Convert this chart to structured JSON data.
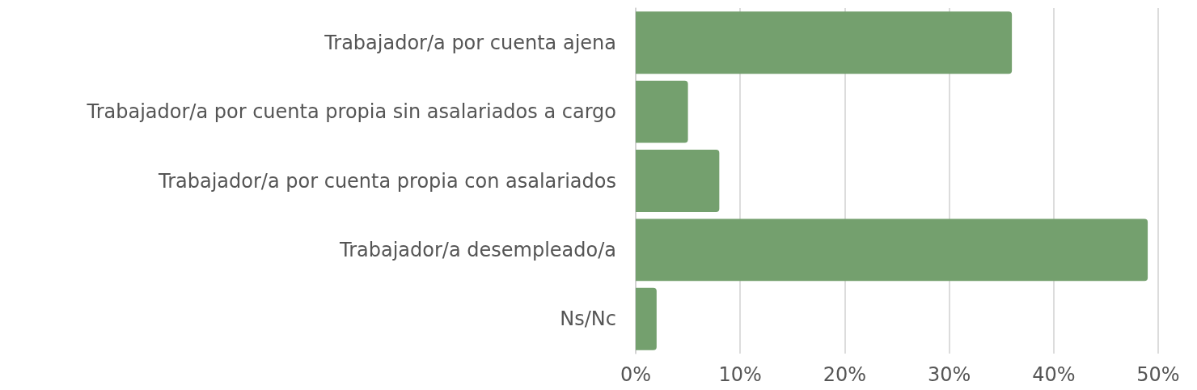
{
  "chart_data": {
    "type": "bar",
    "orientation": "horizontal",
    "categories": [
      "Trabajador/a por cuenta ajena",
      "Trabajador/a por cuenta propia sin asalariados a cargo",
      "Trabajador/a por cuenta propia con asalariados",
      "Trabajador/a desempleado/a",
      "Ns/Nc"
    ],
    "values": [
      36,
      5,
      8,
      49,
      2
    ],
    "color": "#74a06e",
    "xlim": [
      0,
      50
    ],
    "xticks": [
      {
        "value": 0,
        "label": "0%"
      },
      {
        "value": 10,
        "label": "10%"
      },
      {
        "value": 20,
        "label": "20%"
      },
      {
        "value": 30,
        "label": "30%"
      },
      {
        "value": 40,
        "label": "40%"
      },
      {
        "value": 50,
        "label": "50%"
      }
    ],
    "grid": "x"
  }
}
